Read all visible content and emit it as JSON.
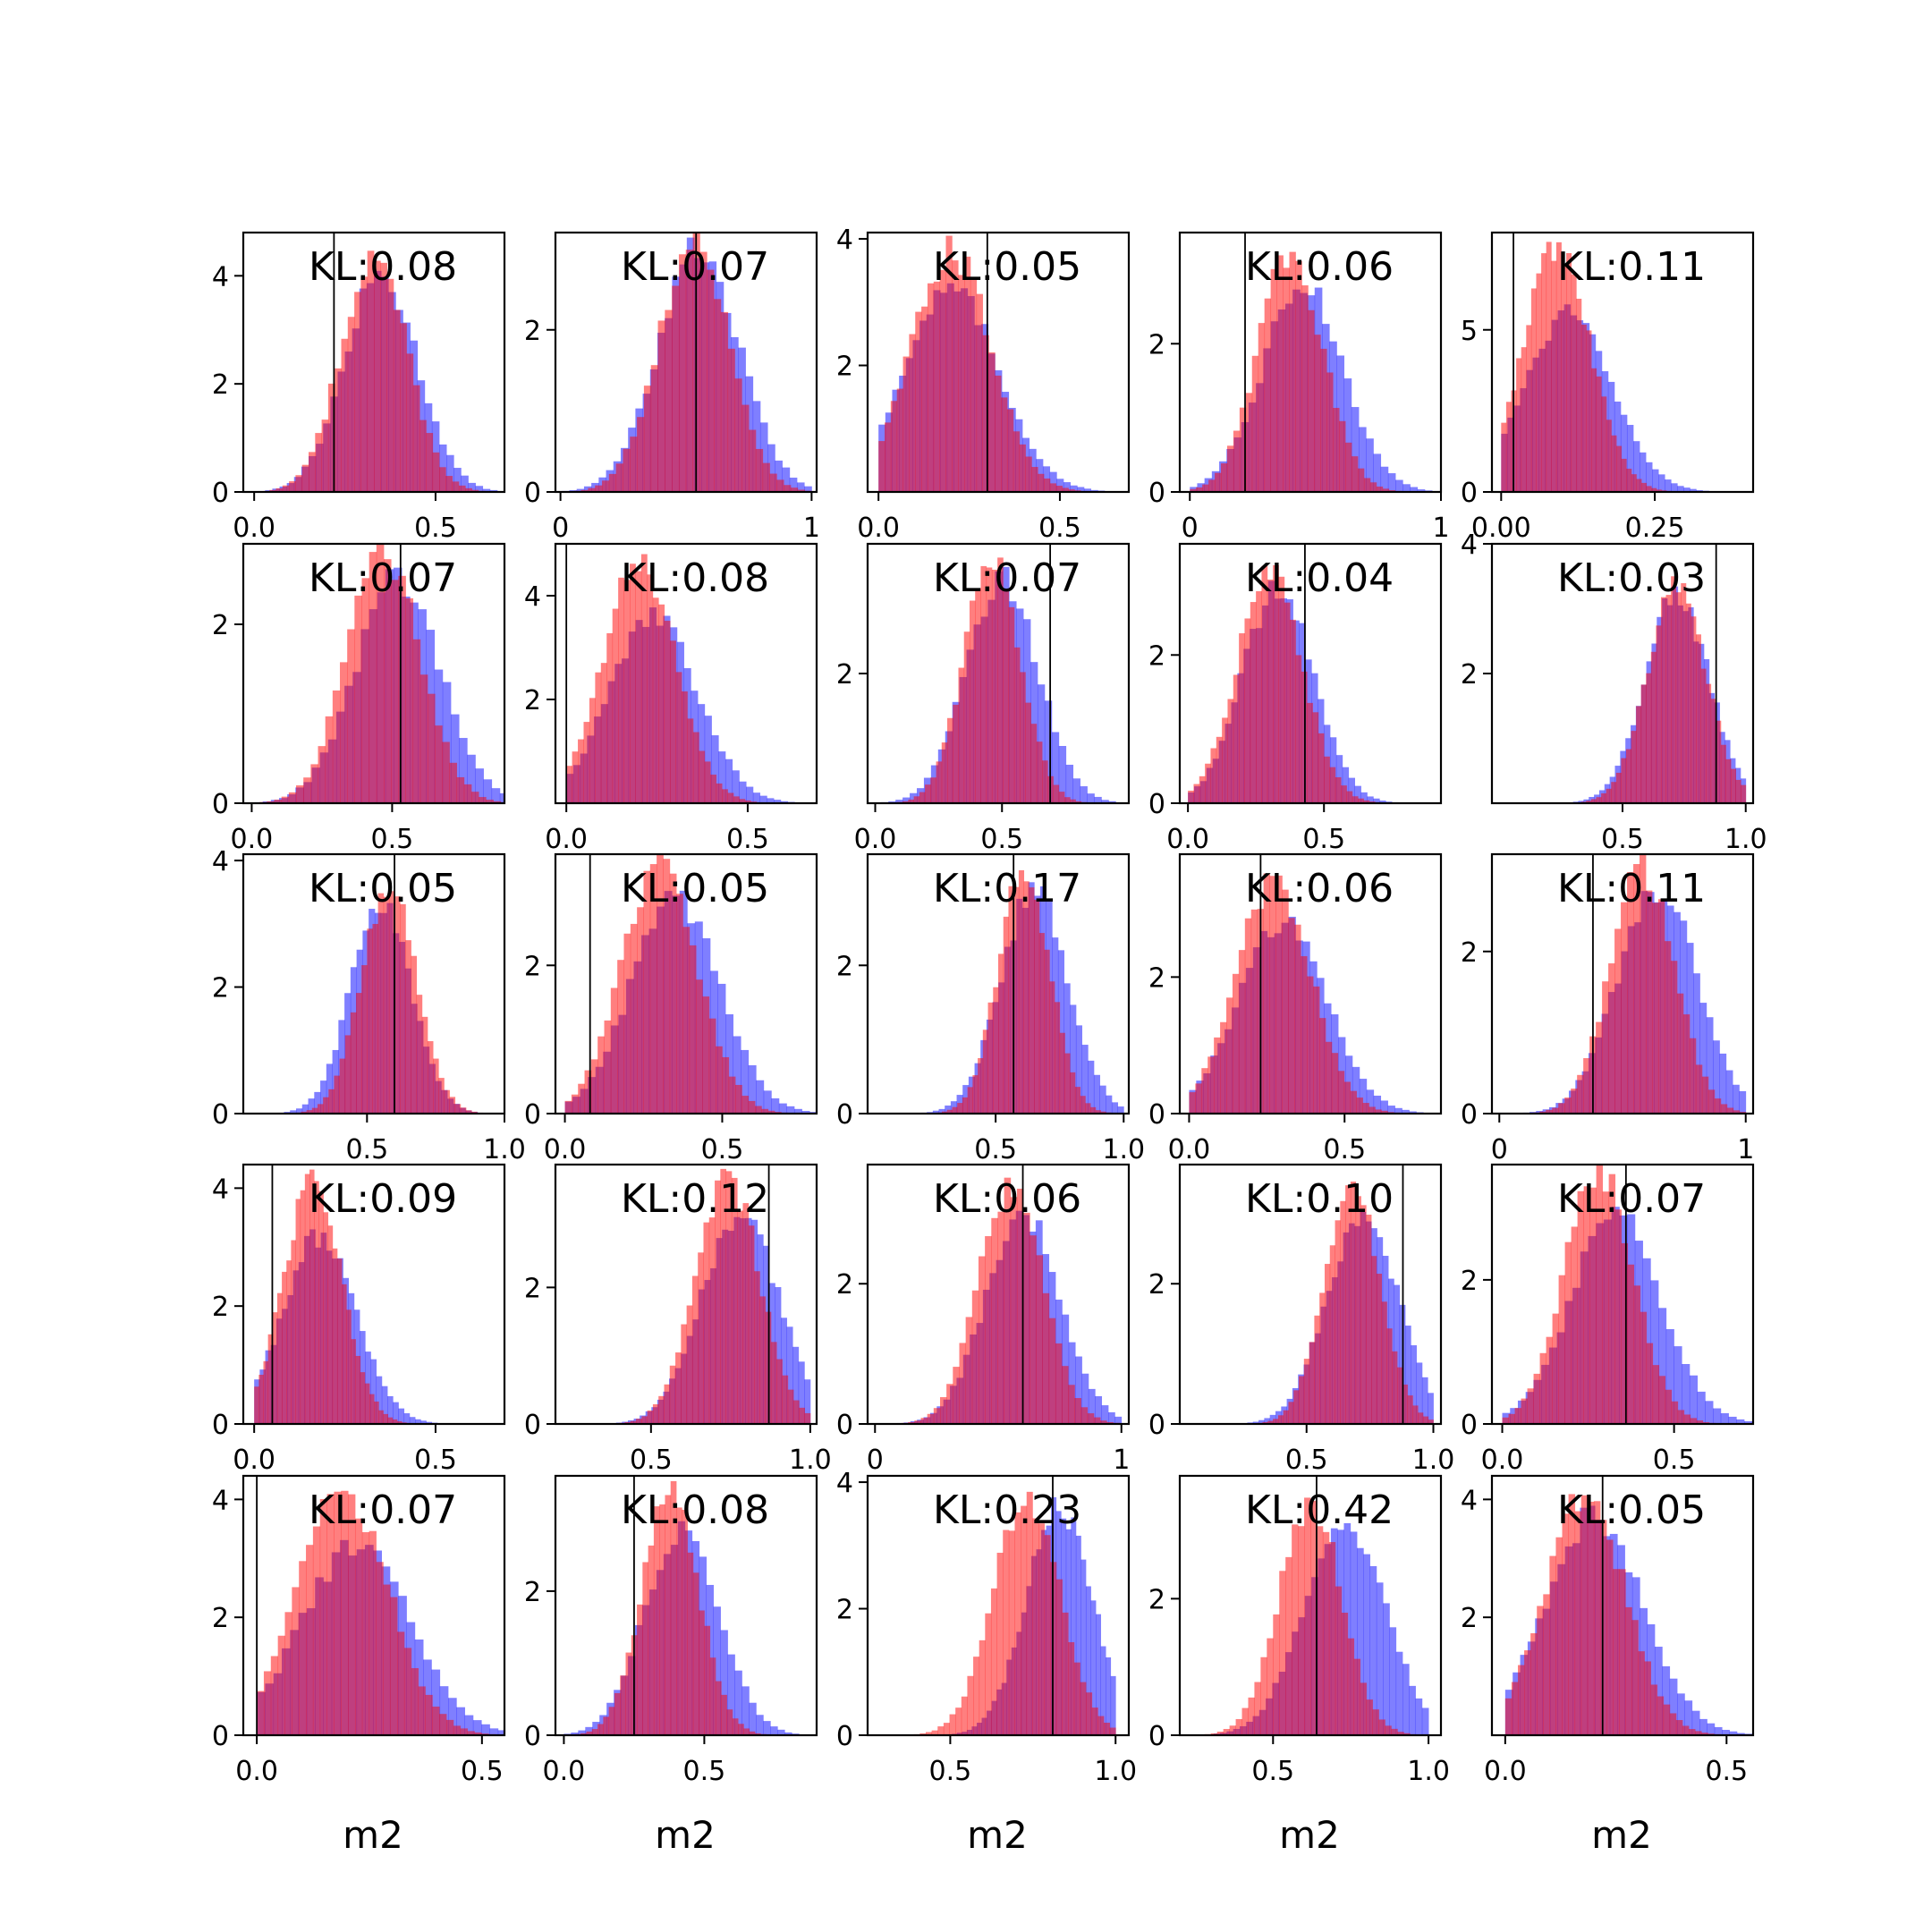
{
  "colors": {
    "series_a": "#0000ff",
    "series_b": "#ff0000",
    "marker_line": "#000000"
  },
  "chart_data": [
    {
      "type": "histogram",
      "row": 0,
      "col": 0,
      "annotation": "KL:0.08",
      "xlim": [
        -0.03,
        0.69
      ],
      "ylim": [
        0,
        4.8
      ],
      "xticks": [
        0.0,
        0.5
      ],
      "xtick_labels": [
        "0.0",
        "0.5"
      ],
      "yticks": [
        0,
        2,
        4
      ],
      "ytick_labels": [
        "0",
        "2",
        "4"
      ],
      "blue": {
        "mean": 0.35,
        "sd": 0.1,
        "peak": 4.0
      },
      "red": {
        "mean": 0.33,
        "sd": 0.09,
        "peak": 4.4
      },
      "vline": 0.22
    },
    {
      "type": "histogram",
      "row": 0,
      "col": 1,
      "annotation": "KL:0.07",
      "xlim": [
        -0.02,
        1.02
      ],
      "ylim": [
        0,
        3.2
      ],
      "xticks": [
        0,
        1
      ],
      "xtick_labels": [
        "0",
        "1"
      ],
      "yticks": [
        0,
        2
      ],
      "ytick_labels": [
        "0",
        "2"
      ],
      "blue": {
        "mean": 0.55,
        "sd": 0.16,
        "peak": 3.0
      },
      "red": {
        "mean": 0.53,
        "sd": 0.14,
        "peak": 3.1
      },
      "vline": 0.54
    },
    {
      "type": "histogram",
      "row": 0,
      "col": 2,
      "annotation": "KL:0.05",
      "xlim": [
        -0.03,
        0.69
      ],
      "ylim": [
        0,
        4.1
      ],
      "xticks": [
        0.0,
        0.5
      ],
      "xtick_labels": [
        "0.0",
        "0.5"
      ],
      "yticks": [
        2,
        4
      ],
      "ytick_labels": [
        "2",
        "4"
      ],
      "blue": {
        "mean": 0.2,
        "sd": 0.13,
        "peak": 3.2
      },
      "red": {
        "mean": 0.2,
        "sd": 0.11,
        "peak": 3.8
      },
      "vline": 0.3
    },
    {
      "type": "histogram",
      "row": 0,
      "col": 3,
      "annotation": "KL:0.06",
      "xlim": [
        -0.04,
        1.0
      ],
      "ylim": [
        0,
        3.5
      ],
      "xticks": [
        0,
        1
      ],
      "xtick_labels": [
        "0",
        "1"
      ],
      "yticks": [
        0,
        2
      ],
      "ytick_labels": [
        "0",
        "2"
      ],
      "blue": {
        "mean": 0.45,
        "sd": 0.16,
        "peak": 2.8
      },
      "red": {
        "mean": 0.4,
        "sd": 0.13,
        "peak": 3.2
      },
      "vline": 0.22
    },
    {
      "type": "histogram",
      "row": 0,
      "col": 4,
      "annotation": "KL:0.11",
      "xlim": [
        -0.015,
        0.41
      ],
      "ylim": [
        0,
        8.0
      ],
      "xticks": [
        0.0,
        0.25
      ],
      "xtick_labels": [
        "0.00",
        "0.25"
      ],
      "yticks": [
        0,
        5
      ],
      "ytick_labels": [
        "0",
        "5"
      ],
      "blue": {
        "mean": 0.11,
        "sd": 0.07,
        "peak": 5.6
      },
      "red": {
        "mean": 0.09,
        "sd": 0.055,
        "peak": 7.4
      },
      "vline": 0.02
    },
    {
      "type": "histogram",
      "row": 1,
      "col": 0,
      "annotation": "KL:0.07",
      "xlim": [
        -0.03,
        0.9
      ],
      "ylim": [
        0,
        2.9
      ],
      "xticks": [
        0.0,
        0.5
      ],
      "xtick_labels": [
        "0.0",
        "0.5"
      ],
      "yticks": [
        0,
        2
      ],
      "ytick_labels": [
        "0",
        "2"
      ],
      "blue": {
        "mean": 0.52,
        "sd": 0.15,
        "peak": 2.5
      },
      "red": {
        "mean": 0.47,
        "sd": 0.13,
        "peak": 2.8
      },
      "vline": 0.53
    },
    {
      "type": "histogram",
      "row": 1,
      "col": 1,
      "annotation": "KL:0.08",
      "xlim": [
        -0.03,
        0.69
      ],
      "ylim": [
        0,
        5.0
      ],
      "xticks": [
        0.0,
        0.5
      ],
      "xtick_labels": [
        "0.0",
        "0.5"
      ],
      "yticks": [
        2,
        4
      ],
      "ytick_labels": [
        "2",
        "4"
      ],
      "blue": {
        "mean": 0.24,
        "sd": 0.12,
        "peak": 3.6
      },
      "red": {
        "mean": 0.2,
        "sd": 0.1,
        "peak": 4.6
      },
      "vline": 0.0
    },
    {
      "type": "histogram",
      "row": 1,
      "col": 2,
      "annotation": "KL:0.07",
      "xlim": [
        -0.03,
        1.0
      ],
      "ylim": [
        0,
        4.0
      ],
      "xticks": [
        0.0,
        0.5
      ],
      "xtick_labels": [
        "0.0",
        "0.5"
      ],
      "yticks": [
        2
      ],
      "ytick_labels": [
        "2"
      ],
      "blue": {
        "mean": 0.5,
        "sd": 0.14,
        "peak": 3.5
      },
      "red": {
        "mean": 0.46,
        "sd": 0.11,
        "peak": 3.8
      },
      "vline": 0.69
    },
    {
      "type": "histogram",
      "row": 1,
      "col": 3,
      "annotation": "KL:0.04",
      "xlim": [
        -0.03,
        0.93
      ],
      "ylim": [
        0,
        3.5
      ],
      "xticks": [
        0.0,
        0.5
      ],
      "xtick_labels": [
        "0.0",
        "0.5"
      ],
      "yticks": [
        0,
        2
      ],
      "ytick_labels": [
        "0",
        "2"
      ],
      "blue": {
        "mean": 0.33,
        "sd": 0.13,
        "peak": 2.9
      },
      "red": {
        "mean": 0.3,
        "sd": 0.12,
        "peak": 3.1
      },
      "vline": 0.43
    },
    {
      "type": "histogram",
      "row": 1,
      "col": 4,
      "annotation": "KL:0.03",
      "xlim": [
        -0.03,
        1.03
      ],
      "ylim": [
        0,
        4.0
      ],
      "xticks": [
        0.5,
        1.0
      ],
      "xtick_labels": [
        "0.5",
        "1.0"
      ],
      "yticks": [
        2,
        4
      ],
      "ytick_labels": [
        "2",
        "4"
      ],
      "blue": {
        "mean": 0.72,
        "sd": 0.13,
        "peak": 3.2
      },
      "red": {
        "mean": 0.72,
        "sd": 0.12,
        "peak": 3.3
      },
      "vline": 0.88
    },
    {
      "type": "histogram",
      "row": 2,
      "col": 0,
      "annotation": "KL:0.05",
      "xlim": [
        0.05,
        1.0
      ],
      "ylim": [
        0,
        4.1
      ],
      "xticks": [
        0.5,
        1.0
      ],
      "xtick_labels": [
        "0.5",
        "1.0"
      ],
      "yticks": [
        0,
        2,
        4
      ],
      "ytick_labels": [
        "0",
        "2",
        "4"
      ],
      "blue": {
        "mean": 0.55,
        "sd": 0.11,
        "peak": 3.3
      },
      "red": {
        "mean": 0.58,
        "sd": 0.1,
        "peak": 3.6
      },
      "vline": 0.6
    },
    {
      "type": "histogram",
      "row": 2,
      "col": 1,
      "annotation": "KL:0.05",
      "xlim": [
        -0.03,
        0.8
      ],
      "ylim": [
        0,
        3.5
      ],
      "xticks": [
        0.0,
        0.5
      ],
      "xtick_labels": [
        "0.0",
        "0.5"
      ],
      "yticks": [
        0,
        2
      ],
      "ytick_labels": [
        "0",
        "2"
      ],
      "blue": {
        "mean": 0.35,
        "sd": 0.14,
        "peak": 2.9
      },
      "red": {
        "mean": 0.3,
        "sd": 0.12,
        "peak": 3.3
      },
      "vline": 0.08
    },
    {
      "type": "histogram",
      "row": 2,
      "col": 2,
      "annotation": "KL:0.17",
      "xlim": [
        0.0,
        1.02
      ],
      "ylim": [
        0,
        3.5
      ],
      "xticks": [
        0.5,
        1.0
      ],
      "xtick_labels": [
        "0.5",
        "1.0"
      ],
      "yticks": [
        0,
        2
      ],
      "ytick_labels": [
        "0",
        "2"
      ],
      "blue": {
        "mean": 0.65,
        "sd": 0.13,
        "peak": 3.0
      },
      "red": {
        "mean": 0.61,
        "sd": 0.1,
        "peak": 3.3
      },
      "vline": 0.57
    },
    {
      "type": "histogram",
      "row": 2,
      "col": 3,
      "annotation": "KL:0.06",
      "xlim": [
        -0.03,
        0.81
      ],
      "ylim": [
        0,
        3.8
      ],
      "xticks": [
        0.0,
        0.5
      ],
      "xtick_labels": [
        "0.0",
        "0.5"
      ],
      "yticks": [
        0,
        2
      ],
      "ytick_labels": [
        "0",
        "2"
      ],
      "blue": {
        "mean": 0.3,
        "sd": 0.14,
        "peak": 2.8
      },
      "red": {
        "mean": 0.27,
        "sd": 0.12,
        "peak": 3.4
      },
      "vline": 0.23
    },
    {
      "type": "histogram",
      "row": 2,
      "col": 4,
      "annotation": "KL:0.11",
      "xlim": [
        -0.03,
        1.03
      ],
      "ylim": [
        0,
        3.2
      ],
      "xticks": [
        0,
        1
      ],
      "xtick_labels": [
        "0",
        "1"
      ],
      "yticks": [
        0,
        2
      ],
      "ytick_labels": [
        "0",
        "2"
      ],
      "blue": {
        "mean": 0.64,
        "sd": 0.16,
        "peak": 2.8
      },
      "red": {
        "mean": 0.58,
        "sd": 0.13,
        "peak": 3.0
      },
      "vline": 0.38
    },
    {
      "type": "histogram",
      "row": 3,
      "col": 0,
      "annotation": "KL:0.09",
      "xlim": [
        -0.03,
        0.69
      ],
      "ylim": [
        0,
        4.4
      ],
      "xticks": [
        0.0,
        0.5
      ],
      "xtick_labels": [
        "0.0",
        "0.5"
      ],
      "yticks": [
        0,
        2,
        4
      ],
      "ytick_labels": [
        "0",
        "2",
        "4"
      ],
      "blue": {
        "mean": 0.18,
        "sd": 0.1,
        "peak": 3.2
      },
      "red": {
        "mean": 0.16,
        "sd": 0.08,
        "peak": 4.1
      },
      "vline": 0.05
    },
    {
      "type": "histogram",
      "row": 3,
      "col": 1,
      "annotation": "KL:0.12",
      "xlim": [
        0.2,
        1.02
      ],
      "ylim": [
        0,
        3.8
      ],
      "xticks": [
        0.5,
        1.0
      ],
      "xtick_labels": [
        "0.5",
        "1.0"
      ],
      "yticks": [
        0,
        2
      ],
      "ytick_labels": [
        "0",
        "2"
      ],
      "blue": {
        "mean": 0.78,
        "sd": 0.12,
        "peak": 3.1
      },
      "red": {
        "mean": 0.74,
        "sd": 0.1,
        "peak": 3.6
      },
      "vline": 0.87
    },
    {
      "type": "histogram",
      "row": 3,
      "col": 2,
      "annotation": "KL:0.06",
      "xlim": [
        -0.03,
        1.03
      ],
      "ylim": [
        0,
        3.7
      ],
      "xticks": [
        0,
        1
      ],
      "xtick_labels": [
        "0",
        "1"
      ],
      "yticks": [
        0,
        2
      ],
      "ytick_labels": [
        "0",
        "2"
      ],
      "blue": {
        "mean": 0.6,
        "sd": 0.15,
        "peak": 3.0
      },
      "red": {
        "mean": 0.55,
        "sd": 0.13,
        "peak": 3.4
      },
      "vline": 0.6
    },
    {
      "type": "histogram",
      "row": 3,
      "col": 3,
      "annotation": "KL:0.10",
      "xlim": [
        0.0,
        1.03
      ],
      "ylim": [
        0,
        3.7
      ],
      "xticks": [
        0.5,
        1.0
      ],
      "xtick_labels": [
        "0.5",
        "1.0"
      ],
      "yticks": [
        0,
        2
      ],
      "ytick_labels": [
        "0",
        "2"
      ],
      "blue": {
        "mean": 0.72,
        "sd": 0.14,
        "peak": 3.0
      },
      "red": {
        "mean": 0.68,
        "sd": 0.11,
        "peak": 3.4
      },
      "vline": 0.88
    },
    {
      "type": "histogram",
      "row": 3,
      "col": 4,
      "annotation": "KL:0.07",
      "xlim": [
        -0.03,
        0.73
      ],
      "ylim": [
        0,
        3.6
      ],
      "xticks": [
        0.0,
        0.5
      ],
      "xtick_labels": [
        "0.0",
        "0.5"
      ],
      "yticks": [
        0,
        2
      ],
      "ytick_labels": [
        "0",
        "2"
      ],
      "blue": {
        "mean": 0.33,
        "sd": 0.13,
        "peak": 2.9
      },
      "red": {
        "mean": 0.28,
        "sd": 0.1,
        "peak": 3.5
      },
      "vline": 0.36
    },
    {
      "type": "histogram",
      "row": 4,
      "col": 0,
      "annotation": "KL:0.07",
      "xlim": [
        -0.03,
        0.55
      ],
      "ylim": [
        0,
        4.4
      ],
      "xticks": [
        0.0,
        0.5
      ],
      "xtick_labels": [
        "0.0",
        "0.5"
      ],
      "yticks": [
        0,
        2,
        4
      ],
      "ytick_labels": [
        "0",
        "2",
        "4"
      ],
      "blue": {
        "mean": 0.22,
        "sd": 0.12,
        "peak": 3.2
      },
      "red": {
        "mean": 0.19,
        "sd": 0.1,
        "peak": 4.2
      },
      "vline": 0.0
    },
    {
      "type": "histogram",
      "row": 4,
      "col": 1,
      "annotation": "KL:0.08",
      "xlim": [
        -0.03,
        0.9
      ],
      "ylim": [
        0,
        3.6
      ],
      "xticks": [
        0.0,
        0.5
      ],
      "xtick_labels": [
        "0.0",
        "0.5"
      ],
      "yticks": [
        0,
        2
      ],
      "ytick_labels": [
        "0",
        "2"
      ],
      "blue": {
        "mean": 0.42,
        "sd": 0.13,
        "peak": 2.9
      },
      "red": {
        "mean": 0.38,
        "sd": 0.1,
        "peak": 3.4
      },
      "vline": 0.25
    },
    {
      "type": "histogram",
      "row": 4,
      "col": 2,
      "annotation": "KL:0.23",
      "xlim": [
        0.25,
        1.04
      ],
      "ylim": [
        0,
        4.1
      ],
      "xticks": [
        0.5,
        1.0
      ],
      "xtick_labels": [
        "0.5",
        "1.0"
      ],
      "yticks": [
        0,
        2,
        4
      ],
      "ytick_labels": [
        "0",
        "2",
        "4"
      ],
      "blue": {
        "mean": 0.83,
        "sd": 0.1,
        "peak": 3.6
      },
      "red": {
        "mean": 0.73,
        "sd": 0.1,
        "peak": 3.8
      },
      "vline": 0.81
    },
    {
      "type": "histogram",
      "row": 4,
      "col": 3,
      "annotation": "KL:0.42",
      "xlim": [
        0.2,
        1.04
      ],
      "ylim": [
        0,
        3.8
      ],
      "xticks": [
        0.5,
        1.0
      ],
      "xtick_labels": [
        "0.5",
        "1.0"
      ],
      "yticks": [
        0,
        2
      ],
      "ytick_labels": [
        "0",
        "2"
      ],
      "blue": {
        "mean": 0.73,
        "sd": 0.13,
        "peak": 3.1
      },
      "red": {
        "mean": 0.62,
        "sd": 0.1,
        "peak": 3.4
      },
      "vline": 0.64
    },
    {
      "type": "histogram",
      "row": 4,
      "col": 4,
      "annotation": "KL:0.05",
      "xlim": [
        -0.03,
        0.56
      ],
      "ylim": [
        0,
        4.4
      ],
      "xticks": [
        0.0,
        0.5
      ],
      "xtick_labels": [
        "0.0",
        "0.5"
      ],
      "yticks": [
        2,
        4
      ],
      "ytick_labels": [
        "2",
        "4"
      ],
      "blue": {
        "mean": 0.2,
        "sd": 0.11,
        "peak": 3.7
      },
      "red": {
        "mean": 0.18,
        "sd": 0.09,
        "peak": 4.1
      },
      "vline": 0.22
    }
  ],
  "xlabels": [
    "m2",
    "m2",
    "m2",
    "m2",
    "m2"
  ]
}
